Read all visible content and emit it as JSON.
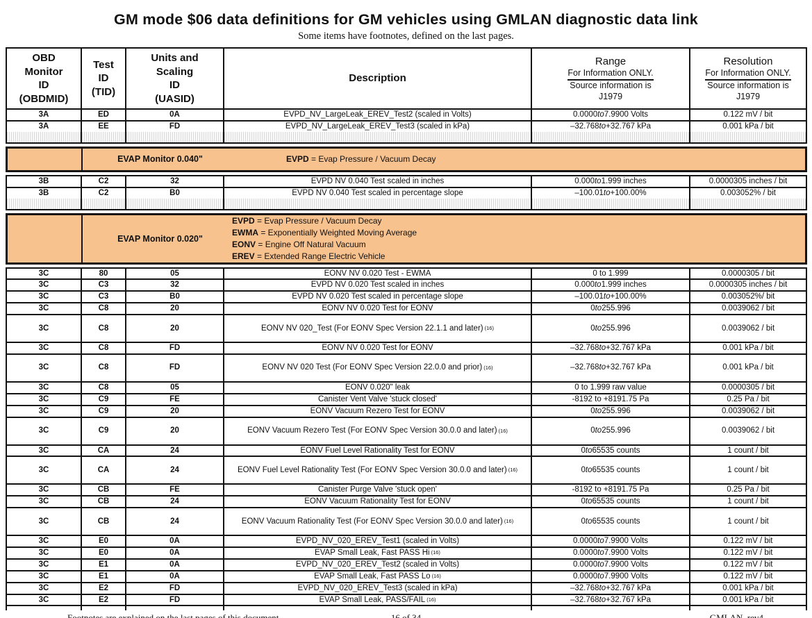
{
  "page": {
    "title": "GM mode $06 data definitions for GM vehicles using GMLAN diagnostic data link",
    "subtitle": "Some items have footnotes, defined on the last pages.",
    "footer": {
      "left": "Footnotes are explained on the last pages of this document.",
      "center": "16 of 34",
      "right": "GMLAN  rev4"
    }
  },
  "colors": {
    "section_bg": "#F8C28E",
    "border": "#141414",
    "hatch_line": "#D9D9D9"
  },
  "table": {
    "header": {
      "obdmid": "OBD\nMonitor\nID\n(OBDMID)",
      "tid": "Test\nID\n(TID)",
      "uasid": "Units and\nScaling\nID\n(UASID)",
      "desc": "Description",
      "range": {
        "title": "Range",
        "note1": "For Information ONLY.",
        "note2": "Source information is",
        "note3": "J1979"
      },
      "resolution": {
        "title": "Resolution",
        "note1": "For Information ONLY.",
        "note2": "Source information is",
        "note3": "J1979"
      }
    },
    "rows_3a": [
      {
        "obdmid": "3A",
        "tid": "ED",
        "uasid": "0A",
        "desc": "EVPD_NV_LargeLeak_EREV_Test2 (scaled in Volts)",
        "sup": "",
        "range": "0.0000 to 7.9900 Volts",
        "toi": true,
        "res": "0.122 mV / bit",
        "tall": false
      },
      {
        "obdmid": "3A",
        "tid": "EE",
        "uasid": "FD",
        "desc": "EVPD_NV_LargeLeak_EREV_Test3 (scaled in kPa)",
        "sup": "",
        "range": "–32.768 to +32.767 kPa",
        "toi": true,
        "res": "0.001 kPa / bit",
        "tall": false
      }
    ],
    "rows_3b": [
      {
        "obdmid": "3B",
        "tid": "C2",
        "uasid": "32",
        "desc": "EVPD NV 0.040 Test scaled in inches",
        "sup": "",
        "range": "0.000 to 1.999 inches",
        "toi": true,
        "res": "0.0000305 inches / bit",
        "tall": false
      },
      {
        "obdmid": "3B",
        "tid": "C2",
        "uasid": "B0",
        "desc": "EVPD NV 0.040 Test scaled in percentage slope",
        "sup": "",
        "range": "–100.01 to +100.00%",
        "toi": true,
        "res": "0.003052% / bit",
        "tall": false
      }
    ],
    "rows_3c": [
      {
        "obdmid": "3C",
        "tid": "80",
        "uasid": "05",
        "desc": "EONV NV 0.020 Test - EWMA",
        "sup": "",
        "range": "0 to 1.999",
        "toi": false,
        "res": "0.0000305 / bit",
        "tall": false
      },
      {
        "obdmid": "3C",
        "tid": "C3",
        "uasid": "32",
        "desc": "EVPD NV 0.020 Test scaled in inches",
        "sup": "",
        "range": "0.000 to 1.999 inches",
        "toi": true,
        "res": "0.0000305 inches / bit",
        "tall": false
      },
      {
        "obdmid": "3C",
        "tid": "C3",
        "uasid": "B0",
        "desc": "EVPD NV 0.020 Test scaled in percentage slope",
        "sup": "",
        "range": "–100.01 to +100.00%",
        "toi": true,
        "res": "0.003052%/ bit",
        "tall": false
      },
      {
        "obdmid": "3C",
        "tid": "C8",
        "uasid": "20",
        "desc": "EONV NV 0.020 Test for EONV",
        "sup": "",
        "range": "0 to 255.996",
        "toi": true,
        "res": "0.0039062 / bit",
        "tall": false
      },
      {
        "obdmid": "3C",
        "tid": "C8",
        "uasid": "20",
        "desc": "EONV NV 020_Test (For EONV Spec Version 22.1.1 and later)",
        "sup": "(16)",
        "range": "0 to 255.996",
        "toi": true,
        "res": "0.0039062 / bit",
        "tall": true
      },
      {
        "obdmid": "3C",
        "tid": "C8",
        "uasid": "FD",
        "desc": "EONV NV 0.020 Test for EONV",
        "sup": "",
        "range": "–32.768 to +32.767 kPa",
        "toi": true,
        "res": "0.001 kPa / bit",
        "tall": false
      },
      {
        "obdmid": "3C",
        "tid": "C8",
        "uasid": "FD",
        "desc": "EONV NV 020 Test (For EONV Spec Version 22.0.0 and prior)",
        "sup": "(16)",
        "range": "–32.768 to +32.767 kPa",
        "toi": true,
        "res": "0.001 kPa / bit",
        "tall": true
      },
      {
        "obdmid": "3C",
        "tid": "C8",
        "uasid": "05",
        "desc": "EONV 0.020\" leak",
        "sup": "",
        "range": "0 to 1.999 raw value",
        "toi": false,
        "res": "0.0000305 / bit",
        "tall": false
      },
      {
        "obdmid": "3C",
        "tid": "C9",
        "uasid": "FE",
        "desc": "Canister Vent Valve 'stuck closed'",
        "sup": "",
        "range": "-8192 to +8191.75 Pa",
        "toi": false,
        "res": "0.25 Pa / bit",
        "tall": false
      },
      {
        "obdmid": "3C",
        "tid": "C9",
        "uasid": "20",
        "desc": "EONV Vacuum Rezero Test for EONV",
        "sup": "",
        "range": "0 to 255.996",
        "toi": true,
        "res": "0.0039062 / bit",
        "tall": false
      },
      {
        "obdmid": "3C",
        "tid": "C9",
        "uasid": "20",
        "desc": "EONV Vacuum Rezero Test (For EONV Spec Version 30.0.0 and later)",
        "sup": "(16)",
        "range": "0 to 255.996",
        "toi": true,
        "res": "0.0039062 / bit",
        "tall": true
      },
      {
        "obdmid": "3C",
        "tid": "CA",
        "uasid": "24",
        "desc": "EONV Fuel Level Rationality Test for EONV",
        "sup": "",
        "range": "0 to 65535 counts",
        "toi": true,
        "res": "1 count / bit",
        "tall": false
      },
      {
        "obdmid": "3C",
        "tid": "CA",
        "uasid": "24",
        "desc": "EONV Fuel Level Rationality Test (For EONV Spec Version 30.0.0 and later)",
        "sup": "(16)",
        "range": "0 to 65535 counts",
        "toi": true,
        "res": "1 count / bit",
        "tall": true
      },
      {
        "obdmid": "3C",
        "tid": "CB",
        "uasid": "FE",
        "desc": "Canister Purge Valve 'stuck open'",
        "sup": "",
        "range": "-8192 to +8191.75 Pa",
        "toi": false,
        "res": "0.25 Pa / bit",
        "tall": false
      },
      {
        "obdmid": "3C",
        "tid": "CB",
        "uasid": "24",
        "desc": "EONV Vacuum Rationality Test for EONV",
        "sup": "",
        "range": "0 to 65535 counts",
        "toi": true,
        "res": "1 count / bit",
        "tall": false
      },
      {
        "obdmid": "3C",
        "tid": "CB",
        "uasid": "24",
        "desc": "EONV Vacuum Rationality Test (For EONV Spec Version 30.0.0 and later)",
        "sup": "(16)",
        "range": "0 to 65535 counts",
        "toi": true,
        "res": "1 count / bit",
        "tall": true
      },
      {
        "obdmid": "3C",
        "tid": "E0",
        "uasid": "0A",
        "desc": "EVPD_NV_020_EREV_Test1 (scaled in Volts)",
        "sup": "",
        "range": "0.0000 to 7.9900 Volts",
        "toi": true,
        "res": "0.122 mV / bit",
        "tall": false
      },
      {
        "obdmid": "3C",
        "tid": "E0",
        "uasid": "0A",
        "desc": "EVAP Small Leak,  Fast PASS Hi",
        "sup": "(16)",
        "range": "0.0000 to 7.9900 Volts",
        "toi": true,
        "res": "0.122 mV / bit",
        "tall": false
      },
      {
        "obdmid": "3C",
        "tid": "E1",
        "uasid": "0A",
        "desc": "EVPD_NV_020_EREV_Test2 (scaled in Volts)",
        "sup": "",
        "range": "0.0000 to 7.9900 Volts",
        "toi": true,
        "res": "0.122 mV / bit",
        "tall": false
      },
      {
        "obdmid": "3C",
        "tid": "E1",
        "uasid": "0A",
        "desc": "EVAP Small Leak,  Fast PASS Lo",
        "sup": "(16)",
        "range": "0.0000 to 7.9900 Volts",
        "toi": true,
        "res": "0.122 mV / bit",
        "tall": false
      },
      {
        "obdmid": "3C",
        "tid": "E2",
        "uasid": "FD",
        "desc": "EVPD_NV_020_EREV_Test3 (scaled in kPa)",
        "sup": "",
        "range": "–32.768 to +32.767 kPa",
        "toi": true,
        "res": "0.001 kPa / bit",
        "tall": false
      },
      {
        "obdmid": "3C",
        "tid": "E2",
        "uasid": "FD",
        "desc": "EVAP Small Leak,  PASS/FAIL",
        "sup": "(16)",
        "range": "–32.768 to +32.767 kPa",
        "toi": true,
        "res": "0.001 kPa / bit",
        "tall": false
      }
    ]
  },
  "sections": {
    "s040": {
      "label": "EVAP Monitor 0.040\"",
      "defs": [
        {
          "abbr": "EVPD",
          "rest": "= Evap Pressure / Vacuum Decay"
        }
      ]
    },
    "s020": {
      "label": "EVAP Monitor 0.020\"",
      "defs": [
        {
          "abbr": "EVPD",
          "rest": "= Evap Pressure / Vacuum Decay"
        },
        {
          "abbr": "EWMA",
          "rest": "= Exponentially Weighted Moving Average"
        },
        {
          "abbr": "EONV",
          "rest": "= Engine Off Natural Vacuum"
        },
        {
          "abbr": "EREV",
          "rest": "= Extended Range Electric Vehicle"
        }
      ]
    }
  }
}
